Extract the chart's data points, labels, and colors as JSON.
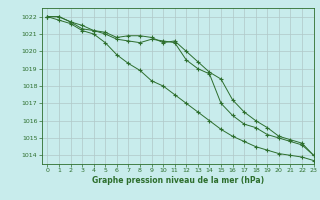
{
  "title": "Graphe pression niveau de la mer (hPa)",
  "background_color": "#c8ecec",
  "plot_background": "#c8ecec",
  "grid_color": "#b0c8c8",
  "line_color": "#2d6e2d",
  "xlim": [
    -0.5,
    23
  ],
  "ylim": [
    1013.5,
    1022.5
  ],
  "yticks": [
    1014,
    1015,
    1016,
    1017,
    1018,
    1019,
    1020,
    1021,
    1022
  ],
  "xticks": [
    0,
    1,
    2,
    3,
    4,
    5,
    6,
    7,
    8,
    9,
    10,
    11,
    12,
    13,
    14,
    15,
    16,
    17,
    18,
    19,
    20,
    21,
    22,
    23
  ],
  "series1_x": [
    0,
    1,
    2,
    3,
    4,
    5,
    6,
    7,
    8,
    9,
    10,
    11,
    12,
    13,
    14,
    15,
    16,
    17,
    18,
    19,
    20,
    21,
    22,
    23
  ],
  "series1_y": [
    1022.0,
    1022.0,
    1021.7,
    1021.5,
    1021.2,
    1021.1,
    1020.8,
    1020.9,
    1020.9,
    1020.8,
    1020.5,
    1020.6,
    1020.0,
    1019.4,
    1018.8,
    1018.4,
    1017.2,
    1016.5,
    1016.0,
    1015.6,
    1015.1,
    1014.9,
    1014.7,
    1014.0
  ],
  "series2_x": [
    0,
    1,
    2,
    3,
    4,
    5,
    6,
    7,
    8,
    9,
    10,
    11,
    12,
    13,
    14,
    15,
    16,
    17,
    18,
    19,
    20,
    21,
    22,
    23
  ],
  "series2_y": [
    1022.0,
    1022.0,
    1021.7,
    1021.3,
    1021.2,
    1021.0,
    1020.7,
    1020.6,
    1020.5,
    1020.7,
    1020.6,
    1020.5,
    1019.5,
    1019.0,
    1018.7,
    1017.0,
    1016.3,
    1015.8,
    1015.6,
    1015.2,
    1015.0,
    1014.8,
    1014.6,
    1014.0
  ],
  "series3_x": [
    0,
    1,
    2,
    3,
    4,
    5,
    6,
    7,
    8,
    9,
    10,
    11,
    12,
    13,
    14,
    15,
    16,
    17,
    18,
    19,
    20,
    21,
    22,
    23
  ],
  "series3_y": [
    1022.0,
    1021.8,
    1021.6,
    1021.2,
    1021.0,
    1020.5,
    1019.8,
    1019.3,
    1018.9,
    1018.3,
    1018.0,
    1017.5,
    1017.0,
    1016.5,
    1016.0,
    1015.5,
    1015.1,
    1014.8,
    1014.5,
    1014.3,
    1014.1,
    1014.0,
    1013.9,
    1013.7
  ],
  "title_fontsize": 5.5,
  "tick_fontsize": 4.5
}
